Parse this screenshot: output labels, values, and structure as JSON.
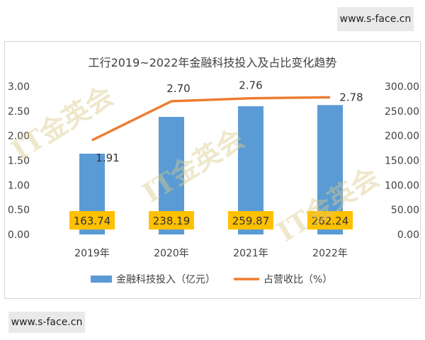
{
  "watermark": {
    "site_top": "www.s-face.cn",
    "site_bottom": "www.s-face.cn",
    "overlay_text": "IT金英会"
  },
  "chart_data": {
    "type": "bar",
    "title": "工行2019~2022年金融科技投入及占比变化趋势",
    "categories": [
      "2019年",
      "2020年",
      "2021年",
      "2022年"
    ],
    "series": [
      {
        "name": "金融科技投入（亿元）",
        "type": "bar",
        "axis": "right",
        "values": [
          163.74,
          238.19,
          259.87,
          262.24
        ],
        "labels": [
          "163.74",
          "238.19",
          "259.87",
          "262.24"
        ],
        "color": "#5b9bd5"
      },
      {
        "name": "占营收比（%）",
        "type": "line",
        "axis": "left",
        "values": [
          1.91,
          2.7,
          2.76,
          2.78
        ],
        "labels": [
          "1.91",
          "2.70",
          "2.76",
          "2.78"
        ],
        "color": "#ed7d31"
      }
    ],
    "left_axis": {
      "ylim": [
        0,
        3.0
      ],
      "ticks": [
        "0.00",
        "0.50",
        "1.00",
        "1.50",
        "2.00",
        "2.50",
        "3.00"
      ]
    },
    "right_axis": {
      "ylim": [
        0,
        300
      ],
      "ticks": [
        "0.00",
        "50.00",
        "100.00",
        "150.00",
        "200.00",
        "250.00",
        "300.00"
      ]
    },
    "grid": false,
    "legend": "bottom",
    "data_label_fill": "#ffc000"
  }
}
